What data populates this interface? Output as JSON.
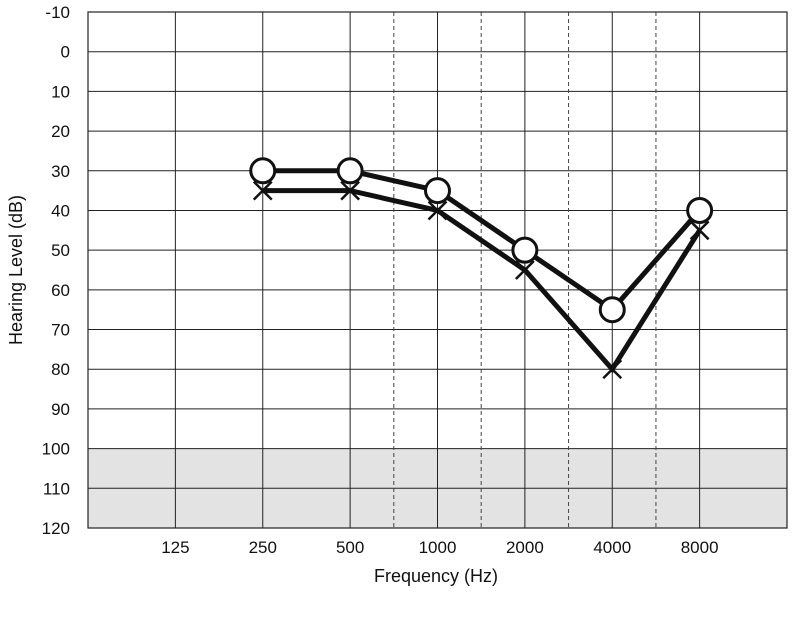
{
  "chart_data": {
    "type": "line",
    "xlabel": "Frequency (Hz)",
    "ylabel": "Hearing Level (dB)",
    "categories": [
      "125",
      "250",
      "500",
      "1000",
      "2000",
      "4000",
      "8000"
    ],
    "ylim": [
      -10,
      120
    ],
    "yticks": [
      "-10",
      "0",
      "10",
      "20",
      "30",
      "40",
      "50",
      "60",
      "70",
      "80",
      "90",
      "100",
      "110",
      "120"
    ],
    "y_inverted": true,
    "grid": true,
    "half_octave_dashed_lines": true,
    "shaded_band": {
      "from": 100,
      "to": 120,
      "color": "#e3e3e3"
    },
    "series": [
      {
        "marker": "circle",
        "x": [
          "250",
          "500",
          "1000",
          "2000",
          "4000",
          "8000"
        ],
        "values": [
          30,
          30,
          35,
          50,
          65,
          40
        ]
      },
      {
        "marker": "cross",
        "x": [
          "250",
          "500",
          "1000",
          "2000",
          "4000",
          "8000"
        ],
        "values": [
          35,
          35,
          40,
          55,
          80,
          45
        ]
      }
    ]
  }
}
